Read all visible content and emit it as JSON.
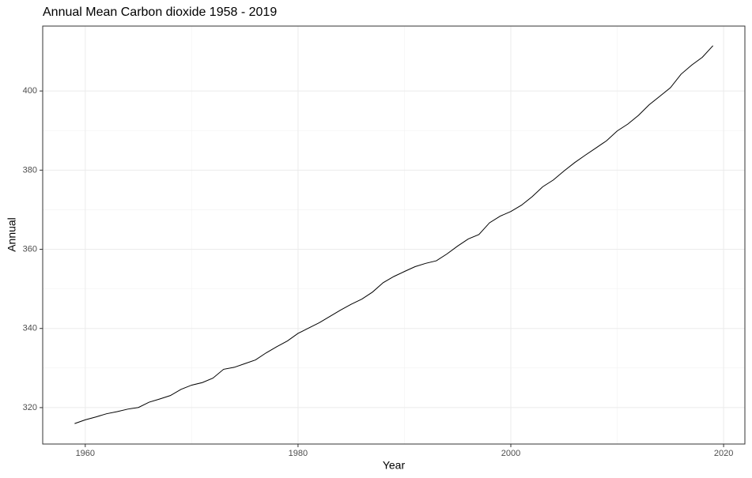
{
  "chart_data": {
    "type": "line",
    "title": "Annual Mean Carbon dioxide 1958 - 2019",
    "x_label": "Year",
    "y_label": "Annual",
    "x": [
      1959,
      1960,
      1961,
      1962,
      1963,
      1964,
      1965,
      1966,
      1967,
      1968,
      1969,
      1970,
      1971,
      1972,
      1973,
      1974,
      1975,
      1976,
      1977,
      1978,
      1979,
      1980,
      1981,
      1982,
      1983,
      1984,
      1985,
      1986,
      1987,
      1988,
      1989,
      1990,
      1991,
      1992,
      1993,
      1994,
      1995,
      1996,
      1997,
      1998,
      1999,
      2000,
      2001,
      2002,
      2003,
      2004,
      2005,
      2006,
      2007,
      2008,
      2009,
      2010,
      2011,
      2012,
      2013,
      2014,
      2015,
      2016,
      2017,
      2018,
      2019
    ],
    "series": [
      {
        "color": "#000000",
        "values": [
          315.97,
          316.91,
          317.64,
          318.45,
          318.99,
          319.62,
          320.04,
          321.37,
          322.18,
          323.05,
          324.62,
          325.68,
          326.32,
          327.45,
          329.68,
          330.18,
          331.11,
          332.04,
          333.83,
          335.4,
          336.84,
          338.75,
          340.11,
          341.45,
          343.05,
          344.65,
          346.12,
          347.42,
          349.19,
          351.57,
          353.12,
          354.39,
          355.61,
          356.45,
          357.1,
          358.83,
          360.82,
          362.61,
          363.73,
          366.7,
          368.38,
          369.55,
          371.14,
          373.28,
          375.8,
          377.52,
          379.8,
          381.9,
          383.79,
          385.6,
          387.43,
          389.9,
          391.65,
          393.85,
          396.52,
          398.65,
          400.83,
          404.24,
          406.55,
          408.52,
          411.44
        ]
      }
    ],
    "xlim": [
      1956,
      2022
    ],
    "xticks": [
      1960,
      1980,
      2000,
      2020
    ],
    "ylim": [
      310.8,
      416.4
    ],
    "yticks": [
      320,
      340,
      360,
      380,
      400
    ],
    "grid": true
  }
}
